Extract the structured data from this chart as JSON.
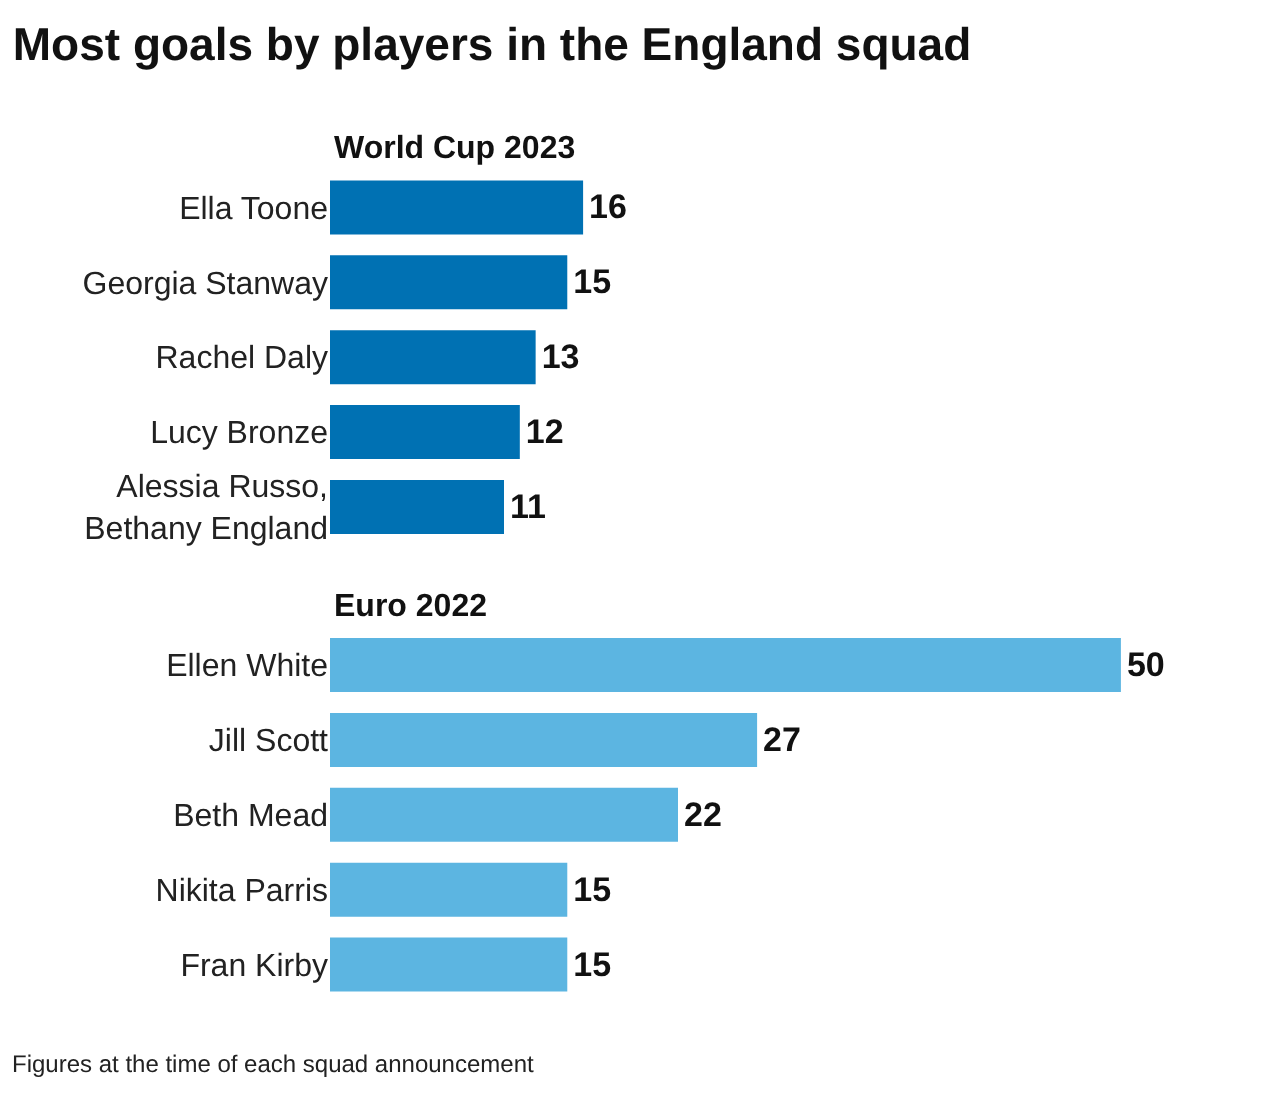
{
  "chart_data": [
    {
      "type": "bar",
      "orientation": "horizontal",
      "title": "Most goals by players in the England squad",
      "subtitle": "World Cup 2023",
      "categories": [
        "Ella Toone",
        "Georgia Stanway",
        "Rachel Daly",
        "Lucy Bronze",
        "Alessia Russo, Bethany England"
      ],
      "values": [
        16,
        15,
        13,
        12,
        11
      ],
      "color": "#0071b3",
      "data_labels": true
    },
    {
      "type": "bar",
      "orientation": "horizontal",
      "title": "Euro 2022",
      "categories": [
        "Ellen White",
        "Jill Scott",
        "Beth Mead",
        "Nikita Parris",
        "Fran Kirby"
      ],
      "values": [
        50,
        27,
        22,
        15,
        15
      ],
      "color": "#5cb5e1",
      "data_labels": true,
      "annotations": [
        "Figures at the time of each squad announcement"
      ]
    }
  ]
}
